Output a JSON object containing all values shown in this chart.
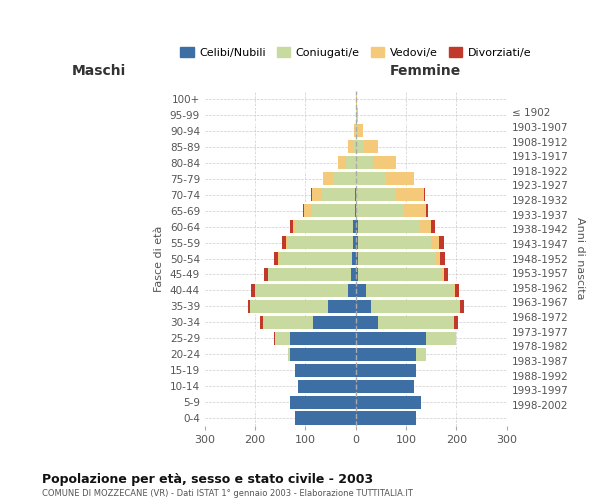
{
  "age_groups": [
    "0-4",
    "5-9",
    "10-14",
    "15-19",
    "20-24",
    "25-29",
    "30-34",
    "35-39",
    "40-44",
    "45-49",
    "50-54",
    "55-59",
    "60-64",
    "65-69",
    "70-74",
    "75-79",
    "80-84",
    "85-89",
    "90-94",
    "95-99",
    "100+"
  ],
  "birth_years": [
    "1998-2002",
    "1993-1997",
    "1988-1992",
    "1983-1987",
    "1978-1982",
    "1973-1977",
    "1968-1972",
    "1963-1967",
    "1958-1962",
    "1953-1957",
    "1948-1952",
    "1943-1947",
    "1938-1942",
    "1933-1937",
    "1928-1932",
    "1923-1927",
    "1918-1922",
    "1913-1917",
    "1908-1912",
    "1903-1907",
    "≤ 1902"
  ],
  "male": {
    "celibe": [
      120,
      130,
      115,
      120,
      130,
      130,
      85,
      55,
      15,
      10,
      7,
      5,
      5,
      2,
      2,
      0,
      0,
      0,
      0,
      0,
      0
    ],
    "coniugato": [
      0,
      0,
      0,
      0,
      5,
      30,
      100,
      155,
      185,
      165,
      145,
      130,
      115,
      85,
      65,
      45,
      20,
      5,
      2,
      0,
      0
    ],
    "vedovo": [
      0,
      0,
      0,
      0,
      0,
      0,
      0,
      0,
      0,
      0,
      2,
      3,
      5,
      15,
      20,
      20,
      15,
      10,
      2,
      0,
      0
    ],
    "divorziato": [
      0,
      0,
      0,
      0,
      0,
      2,
      5,
      5,
      8,
      8,
      8,
      8,
      5,
      3,
      3,
      0,
      0,
      0,
      0,
      0,
      0
    ]
  },
  "female": {
    "nubile": [
      120,
      130,
      115,
      120,
      120,
      140,
      45,
      30,
      20,
      5,
      5,
      5,
      5,
      0,
      0,
      0,
      0,
      0,
      0,
      0,
      0
    ],
    "coniugata": [
      0,
      0,
      0,
      0,
      20,
      60,
      150,
      175,
      175,
      165,
      155,
      145,
      120,
      95,
      80,
      60,
      35,
      15,
      5,
      2,
      0
    ],
    "vedova": [
      0,
      0,
      0,
      0,
      0,
      0,
      0,
      2,
      2,
      5,
      8,
      15,
      25,
      45,
      55,
      55,
      45,
      30,
      10,
      3,
      2
    ],
    "divorziata": [
      0,
      0,
      0,
      0,
      0,
      0,
      8,
      8,
      8,
      8,
      10,
      10,
      8,
      3,
      3,
      0,
      0,
      0,
      0,
      0,
      0
    ]
  },
  "colors": {
    "celibe": "#3d6fa5",
    "coniugato": "#c8daa0",
    "vedovo": "#f5c97a",
    "divorziato": "#c0392b"
  },
  "title": "Popolazione per età, sesso e stato civile - 2003",
  "subtitle": "COMUNE DI MOZZECANE (VR) - Dati ISTAT 1° gennaio 2003 - Elaborazione TUTTITALIA.IT",
  "xlim": 300,
  "ylabel_left": "Fasce di età",
  "ylabel_right": "Anni di nascita",
  "xlabel_left": "Maschi",
  "xlabel_right": "Femmine",
  "legend_labels": [
    "Celibi/Nubili",
    "Coniugati/e",
    "Vedovi/e",
    "Divorziati/e"
  ],
  "bg_color": "#ffffff"
}
